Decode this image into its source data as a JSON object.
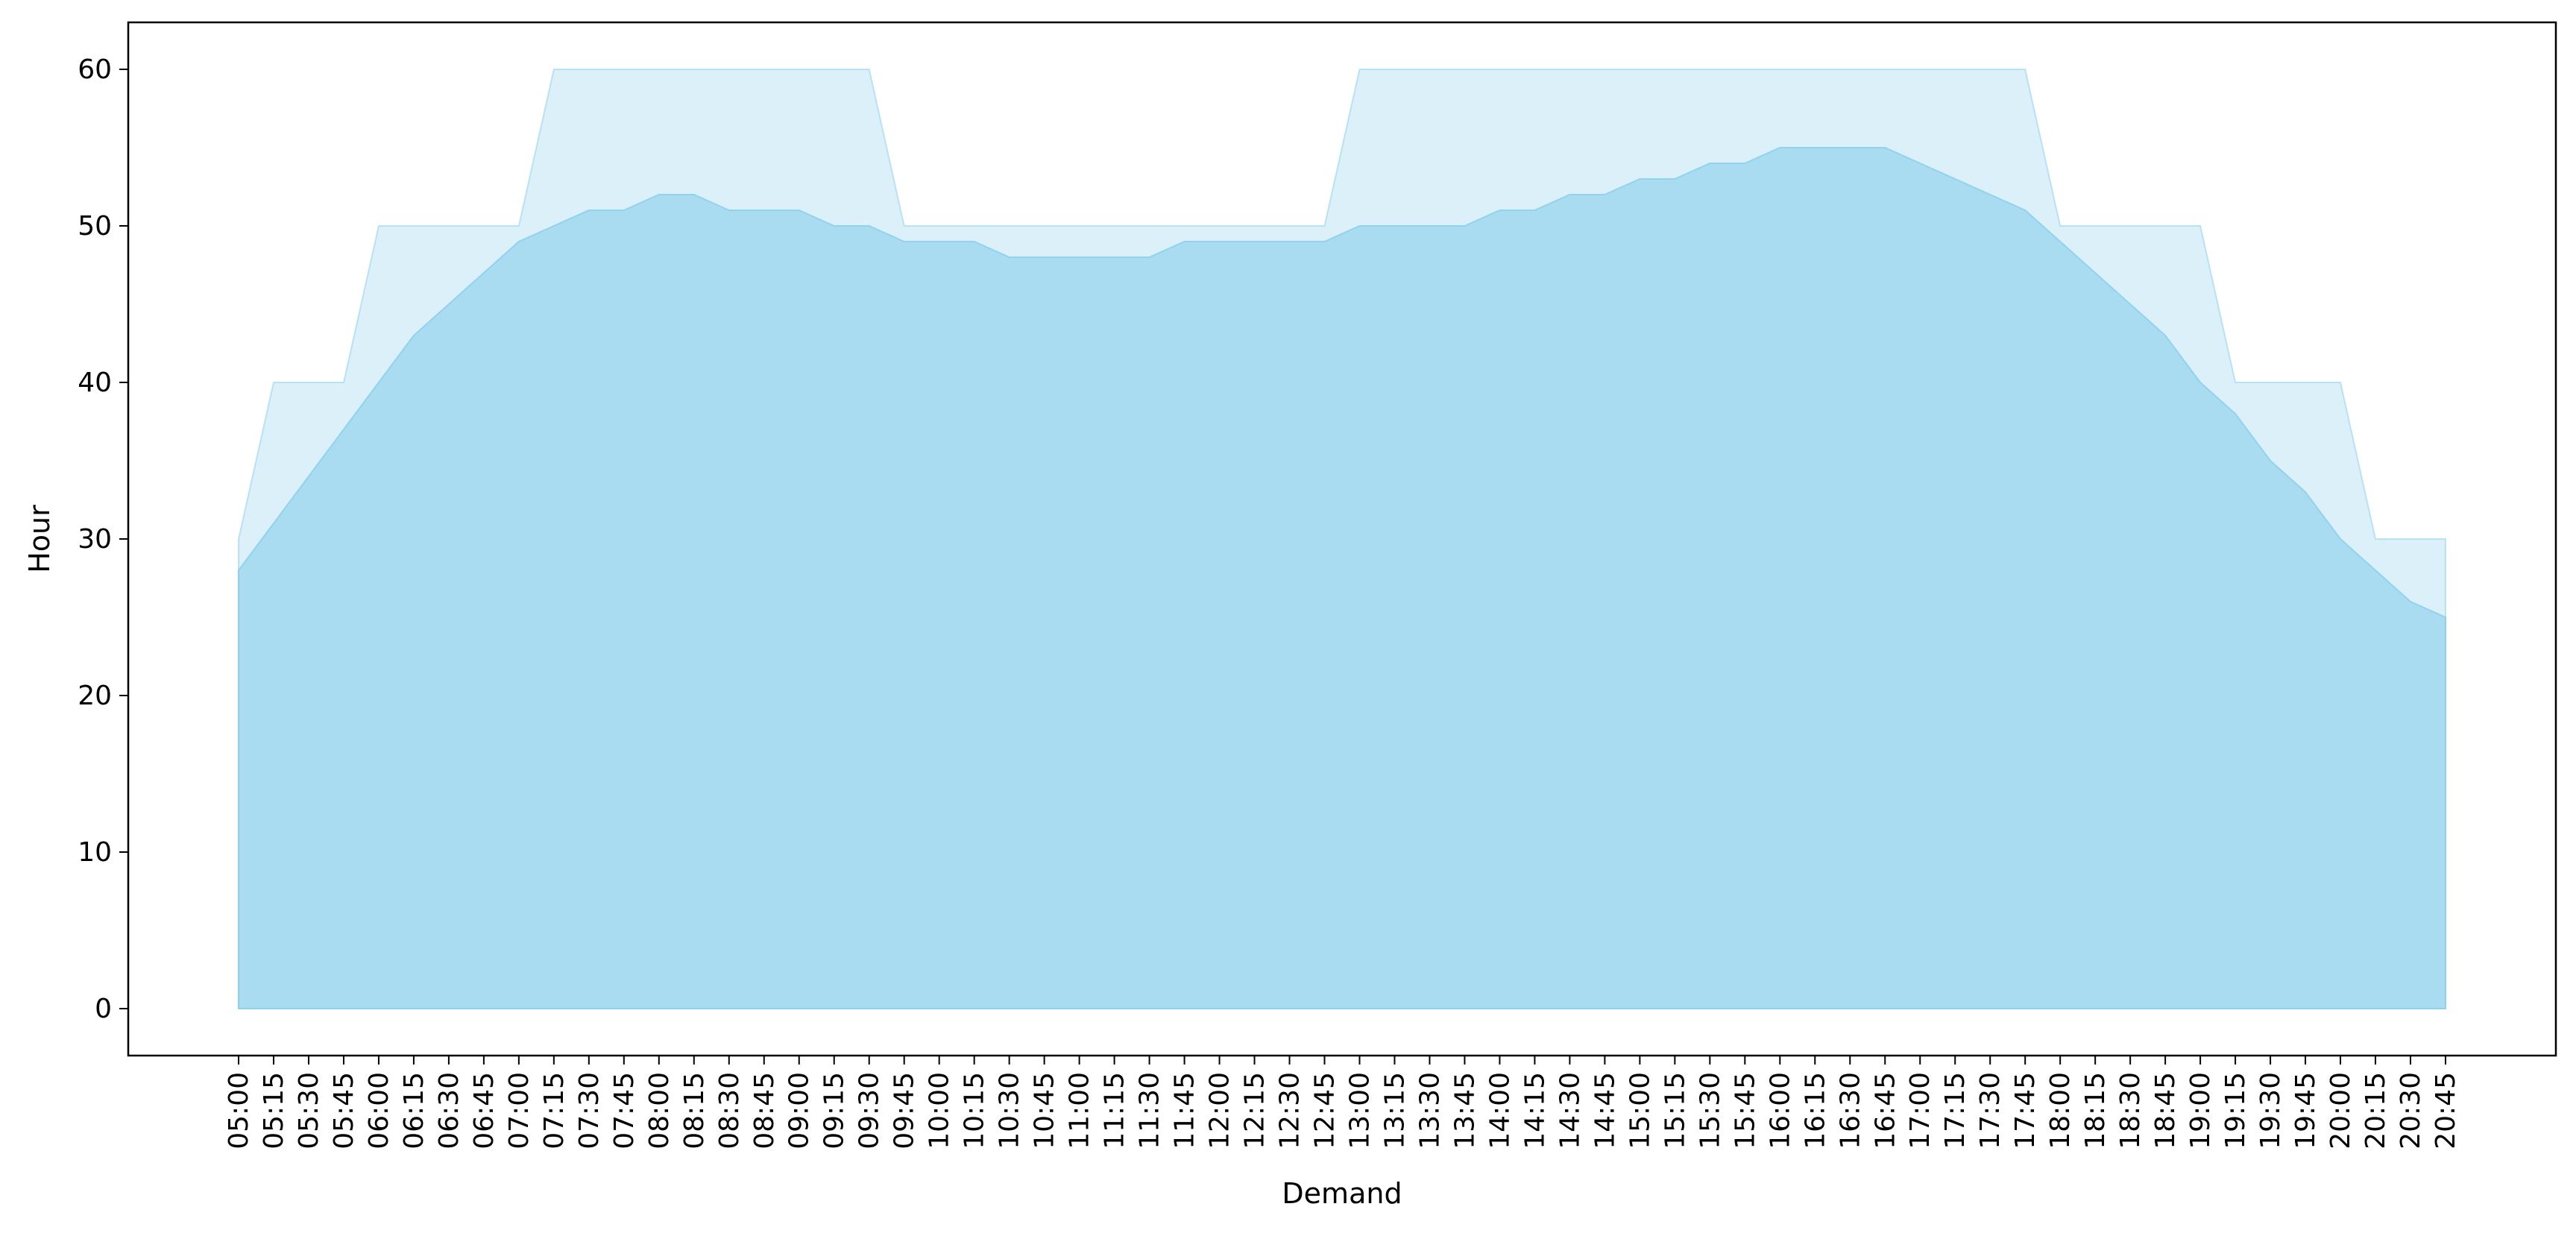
{
  "chart_data": {
    "type": "area",
    "xlabel": "Demand",
    "ylabel": "Hour",
    "ylim": [
      -3,
      63
    ],
    "yticks": [
      0,
      10,
      20,
      30,
      40,
      50,
      60
    ],
    "grid": false,
    "x": [
      "05:00",
      "05:15",
      "05:30",
      "05:45",
      "06:00",
      "06:15",
      "06:30",
      "06:45",
      "07:00",
      "07:15",
      "07:30",
      "07:45",
      "08:00",
      "08:15",
      "08:30",
      "08:45",
      "09:00",
      "09:15",
      "09:30",
      "09:45",
      "10:00",
      "10:15",
      "10:30",
      "10:45",
      "11:00",
      "11:15",
      "11:30",
      "11:45",
      "12:00",
      "12:15",
      "12:30",
      "12:45",
      "13:00",
      "13:15",
      "13:30",
      "13:45",
      "14:00",
      "14:15",
      "14:30",
      "14:45",
      "15:00",
      "15:15",
      "15:30",
      "15:45",
      "16:00",
      "16:15",
      "16:30",
      "16:45",
      "17:00",
      "17:15",
      "17:30",
      "17:45",
      "18:00",
      "18:15",
      "18:30",
      "18:45",
      "19:00",
      "19:15",
      "19:30",
      "19:45",
      "20:00",
      "20:15",
      "20:30",
      "20:45"
    ],
    "series": [
      {
        "color": "#87ceeb",
        "opacity": 0.3,
        "values": [
          30,
          40,
          40,
          40,
          50,
          50,
          50,
          50,
          50,
          60,
          60,
          60,
          60,
          60,
          60,
          60,
          60,
          60,
          60,
          50,
          50,
          50,
          50,
          50,
          50,
          50,
          50,
          50,
          50,
          50,
          50,
          50,
          60,
          60,
          60,
          60,
          60,
          60,
          60,
          60,
          60,
          60,
          60,
          60,
          60,
          60,
          60,
          60,
          60,
          60,
          60,
          60,
          50,
          50,
          50,
          50,
          50,
          40,
          40,
          40,
          40,
          30,
          30,
          30
        ]
      },
      {
        "color": "#87ceeb",
        "opacity": 0.6,
        "values": [
          28,
          31,
          34,
          37,
          40,
          43,
          45,
          47,
          49,
          50,
          51,
          51,
          52,
          52,
          51,
          51,
          51,
          50,
          50,
          49,
          49,
          49,
          48,
          48,
          48,
          48,
          48,
          49,
          49,
          49,
          49,
          49,
          50,
          50,
          50,
          50,
          51,
          51,
          52,
          52,
          53,
          53,
          54,
          54,
          55,
          55,
          55,
          55,
          54,
          53,
          52,
          51,
          49,
          47,
          45,
          43,
          40,
          38,
          35,
          33,
          30,
          28,
          26,
          25
        ]
      }
    ]
  }
}
